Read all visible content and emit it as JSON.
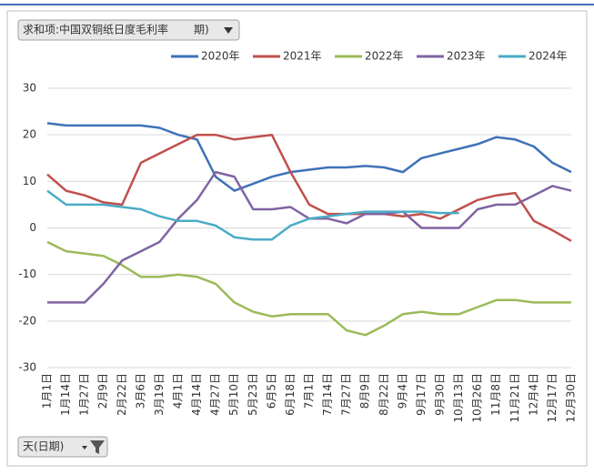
{
  "field_button": {
    "label": "求和项:中国双铜纸日度毛利率",
    "overflow": "期)"
  },
  "axis_button": {
    "label": "天(日期)"
  },
  "chart_data": {
    "type": "line",
    "categories": [
      "1月1日",
      "1月14日",
      "1月27日",
      "2月9日",
      "2月22日",
      "3月6日",
      "3月19日",
      "4月1日",
      "4月14日",
      "4月27日",
      "5月10日",
      "5月23日",
      "6月5日",
      "6月18日",
      "7月1日",
      "7月14日",
      "7月27日",
      "8月9日",
      "8月22日",
      "9月4日",
      "9月17日",
      "9月30日",
      "10月13日",
      "10月26日",
      "11月8日",
      "11月21日",
      "12月4日",
      "12月17日",
      "12月30日"
    ],
    "series": [
      {
        "name": "2020年",
        "color": "#3f72b8",
        "values": [
          22.5,
          22,
          22,
          22,
          22,
          22,
          21.5,
          20,
          19,
          11,
          8,
          9.5,
          11,
          12,
          12.5,
          13,
          13,
          13.3,
          13,
          12,
          15,
          16,
          17,
          18,
          19.5,
          19,
          17.5,
          14,
          12
        ]
      },
      {
        "name": "2021年",
        "color": "#c0504d",
        "values": [
          11.5,
          8,
          7,
          5.5,
          5,
          14,
          16,
          18,
          20,
          20,
          19,
          19.5,
          20,
          12,
          5,
          3,
          3,
          3,
          3,
          2.5,
          3,
          2,
          4,
          6,
          7,
          7.5,
          1.5,
          -0.5,
          -2.8
        ]
      },
      {
        "name": "2022年",
        "color": "#9bbb59",
        "values": [
          -3,
          -5,
          -5.5,
          -6,
          -8,
          -10.5,
          -10.5,
          -10,
          -10.5,
          -12,
          -16,
          -18,
          -19,
          -18.5,
          -18.5,
          -18.5,
          -22,
          -23,
          -21,
          -18.5,
          -18,
          -18.5,
          -18.5,
          -17,
          -15.5,
          -15.5,
          -16,
          -16,
          -16
        ]
      },
      {
        "name": "2023年",
        "color": "#8064a2",
        "values": [
          -16,
          -16,
          -16,
          -12,
          -7,
          -5,
          -3,
          2,
          6,
          12,
          11,
          4,
          4,
          4.5,
          2,
          2,
          1,
          3,
          3,
          3.5,
          0,
          0,
          0,
          4,
          5,
          5,
          7,
          9,
          8
        ]
      },
      {
        "name": "2024年",
        "color": "#4bacc6",
        "values": [
          8,
          5,
          5,
          5,
          4.5,
          4,
          2.5,
          1.5,
          1.5,
          0.5,
          -2,
          -2.5,
          -2.5,
          0.5,
          2,
          2.5,
          3,
          3.5,
          3.5,
          3.5,
          3.5,
          3.2,
          3.2,
          null,
          null,
          null,
          null,
          null,
          null
        ]
      }
    ],
    "ylim": [
      -30,
      30
    ],
    "yticks": [
      -30,
      -20,
      -10,
      0,
      10,
      20,
      30
    ],
    "grid": true,
    "legend": "top-right"
  }
}
